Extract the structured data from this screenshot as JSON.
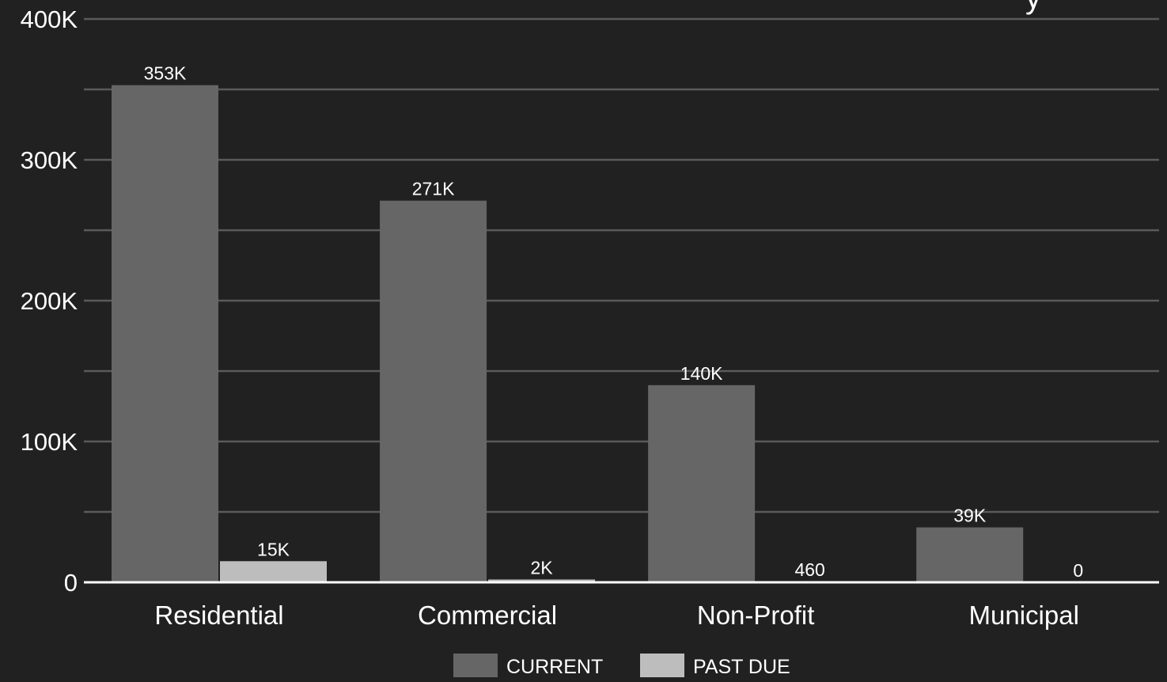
{
  "chart_data": {
    "type": "bar",
    "title_fragment": "y",
    "categories": [
      "Residential",
      "Commercial",
      "Non-Profit",
      "Municipal"
    ],
    "series": [
      {
        "name": "CURRENT",
        "color": "#666666",
        "values": [
          353000,
          271000,
          140000,
          39000
        ],
        "labels": [
          "353K",
          "271K",
          "140K",
          "39K"
        ]
      },
      {
        "name": "PAST DUE",
        "color": "#bdbdbd",
        "values": [
          15000,
          2000,
          460,
          0
        ],
        "labels": [
          "15K",
          "2K",
          "460",
          "0"
        ]
      }
    ],
    "ylim": [
      0,
      400000
    ],
    "y_ticks": [
      {
        "value": 0,
        "label": "0"
      },
      {
        "value": 100000,
        "label": "100K"
      },
      {
        "value": 200000,
        "label": "200K"
      },
      {
        "value": 300000,
        "label": "300K"
      },
      {
        "value": 400000,
        "label": "400K"
      }
    ],
    "minor_grid_values": [
      50000,
      150000,
      250000,
      350000
    ],
    "grid": true,
    "legend_position": "bottom-center",
    "colors": {
      "background": "#212121",
      "text": "#ffffff",
      "grid": "#5a5a5a",
      "baseline": "#ffffff"
    }
  }
}
